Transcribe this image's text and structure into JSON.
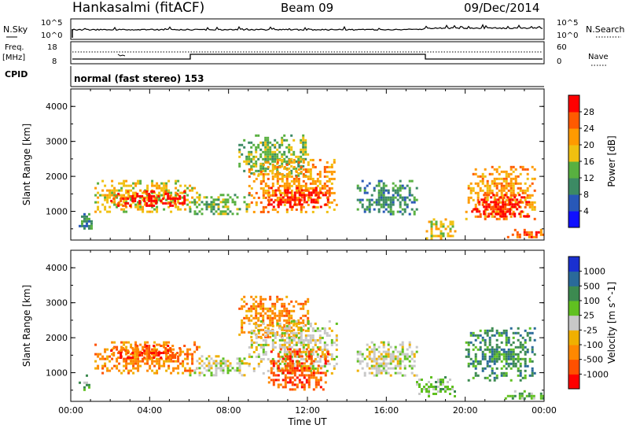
{
  "header": {
    "station": "Hankasalmi (fitACF)",
    "beam": "Beam 09",
    "date": "09/Dec/2014"
  },
  "top_panels": {
    "nsky_label": "N.Sky",
    "nsky_scale_top": "10^5",
    "nsky_scale_bottom": "10^0",
    "nsearch_label": "N.Search",
    "nsearch_scale_top": "10^5",
    "nsearch_scale_bottom": "10^0",
    "freq_label_line1": "Freq.",
    "freq_label_line2": "[MHz]",
    "freq_scale_top": "18",
    "freq_scale_bottom": "8",
    "nave_label": "Nave",
    "nave_scale_top": "60",
    "nave_scale_bottom": "0",
    "cpid_label": "CPID",
    "cpid_value": "normal (fast stereo) 153"
  },
  "chart_data": [
    {
      "type": "heatmap",
      "panel": "power",
      "ylabel": "Slant Range [km]",
      "ylim": [
        180,
        4500
      ],
      "yticks": [
        "1000",
        "2000",
        "3000",
        "4000"
      ],
      "xlim": [
        "00:00",
        "24:00"
      ],
      "colorbar": {
        "label": "Power [dB]",
        "ticks": [
          "4",
          "8",
          "12",
          "16",
          "20",
          "24",
          "28"
        ],
        "colors": [
          "#1010ff",
          "#2858b8",
          "#3c8a64",
          "#58b040",
          "#f0c010",
          "#ff9a00",
          "#ff5a00",
          "#ff0000"
        ]
      },
      "echo_regions": [
        {
          "t0": 0.4,
          "t1": 1.0,
          "r0": 500,
          "r1": 950,
          "level": 2
        },
        {
          "t0": 1.2,
          "t1": 6.5,
          "r0": 1000,
          "r1": 1900,
          "level": 4
        },
        {
          "t0": 2.0,
          "t1": 5.8,
          "r0": 1150,
          "r1": 1600,
          "level": 7
        },
        {
          "t0": 6.0,
          "t1": 9.0,
          "r0": 900,
          "r1": 1500,
          "level": 3
        },
        {
          "t0": 8.5,
          "t1": 12.0,
          "r0": 2000,
          "r1": 3200,
          "level": 3
        },
        {
          "t0": 9.0,
          "t1": 13.5,
          "r0": 1000,
          "r1": 2500,
          "level": 5
        },
        {
          "t0": 10.0,
          "t1": 13.0,
          "r0": 1100,
          "r1": 1700,
          "level": 7
        },
        {
          "t0": 14.5,
          "t1": 17.5,
          "r0": 900,
          "r1": 1900,
          "level": 2
        },
        {
          "t0": 18.0,
          "t1": 19.5,
          "r0": 250,
          "r1": 800,
          "level": 4
        },
        {
          "t0": 20.0,
          "t1": 23.5,
          "r0": 800,
          "r1": 2300,
          "level": 5
        },
        {
          "t0": 20.3,
          "t1": 23.2,
          "r0": 850,
          "r1": 1500,
          "level": 7
        },
        {
          "t0": 22.0,
          "t1": 24.0,
          "r0": 250,
          "r1": 500,
          "level": 6
        }
      ]
    },
    {
      "type": "heatmap",
      "panel": "velocity",
      "ylabel": "Slant Range [km]",
      "ylim": [
        180,
        4500
      ],
      "yticks": [
        "1000",
        "2000",
        "3000",
        "4000"
      ],
      "xlabel": "Time UT",
      "xlim": [
        "00:00",
        "24:00"
      ],
      "xticks": [
        "00:00",
        "04:00",
        "08:00",
        "12:00",
        "16:00",
        "20:00",
        "00:00"
      ],
      "colorbar": {
        "label": "Velocity [m s^-1]",
        "ticks": [
          "1000",
          "500",
          "100",
          "25",
          "-25",
          "-100",
          "-500",
          "-1000"
        ],
        "colors": [
          "#1a30d0",
          "#2a6a9a",
          "#3c8a50",
          "#60c020",
          "#c8c8c8",
          "#f0b000",
          "#ff8800",
          "#ff5000",
          "#ff0000"
        ]
      },
      "echo_regions": [
        {
          "t0": 0.4,
          "t1": 1.0,
          "r0": 500,
          "r1": 950,
          "level": 3
        },
        {
          "t0": 1.2,
          "t1": 6.5,
          "r0": 1000,
          "r1": 1900,
          "level": 6
        },
        {
          "t0": 2.0,
          "t1": 5.8,
          "r0": 1400,
          "r1": 1800,
          "level": 7
        },
        {
          "t0": 6.0,
          "t1": 9.0,
          "r0": 900,
          "r1": 1500,
          "level": 4
        },
        {
          "t0": 8.5,
          "t1": 12.0,
          "r0": 2000,
          "r1": 3200,
          "level": 6
        },
        {
          "t0": 9.0,
          "t1": 13.5,
          "r0": 1000,
          "r1": 2500,
          "level": 4
        },
        {
          "t0": 10.0,
          "t1": 13.0,
          "r0": 500,
          "r1": 1700,
          "level": 7
        },
        {
          "t0": 14.5,
          "t1": 17.5,
          "r0": 900,
          "r1": 1900,
          "level": 4
        },
        {
          "t0": 17.5,
          "t1": 19.5,
          "r0": 300,
          "r1": 900,
          "level": 3
        },
        {
          "t0": 20.0,
          "t1": 23.5,
          "r0": 800,
          "r1": 2300,
          "level": 2
        },
        {
          "t0": 22.0,
          "t1": 24.0,
          "r0": 250,
          "r1": 500,
          "level": 3
        }
      ]
    }
  ]
}
